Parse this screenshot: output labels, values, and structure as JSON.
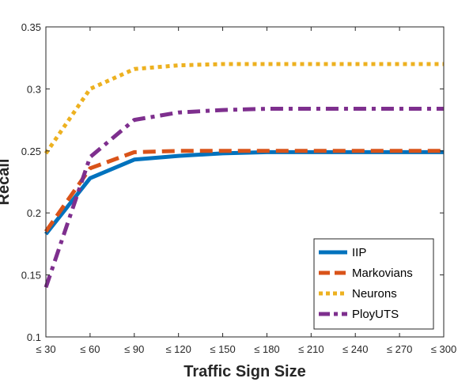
{
  "chart_data": {
    "type": "line",
    "title": "",
    "xlabel": "Traffic Sign Size",
    "ylabel": "Recall",
    "categories": [
      "≤ 30",
      "≤ 60",
      "≤ 90",
      "≤ 120",
      "≤ 150",
      "≤ 180",
      "≤ 210",
      "≤ 240",
      "≤ 270",
      "≤ 300"
    ],
    "ylim": [
      0.1,
      0.35
    ],
    "yticks": [
      0.1,
      0.15,
      0.2,
      0.25,
      0.3,
      0.35
    ],
    "ytick_labels": [
      "0.1",
      "0.15",
      "0.2",
      "0.25",
      "0.3",
      "0.35"
    ],
    "grid": false,
    "legend_position": "bottom-right",
    "series": [
      {
        "name": "IIP",
        "color": "#0072BD",
        "style": "solid",
        "values": [
          0.183,
          0.228,
          0.243,
          0.246,
          0.248,
          0.249,
          0.249,
          0.249,
          0.249,
          0.249
        ]
      },
      {
        "name": "Markovians",
        "color": "#D95319",
        "style": "dashed",
        "values": [
          0.185,
          0.236,
          0.249,
          0.25,
          0.25,
          0.25,
          0.25,
          0.25,
          0.25,
          0.25
        ]
      },
      {
        "name": "Neurons",
        "color": "#EDB120",
        "style": "dotted",
        "values": [
          0.248,
          0.3,
          0.316,
          0.319,
          0.32,
          0.32,
          0.32,
          0.32,
          0.32,
          0.32
        ]
      },
      {
        "name": "PloyUTS",
        "color": "#7E2F8E",
        "style": "dashdot",
        "values": [
          0.14,
          0.245,
          0.275,
          0.281,
          0.283,
          0.284,
          0.284,
          0.284,
          0.284,
          0.284
        ]
      }
    ]
  }
}
